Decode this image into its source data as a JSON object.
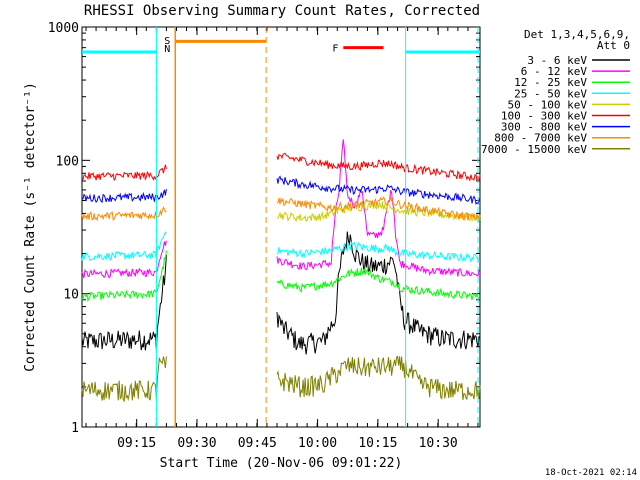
{
  "chart_data": {
    "type": "line",
    "title": "RHESSI Observing Summary Count Rates, Corrected",
    "xlabel": "Start Time (20-Nov-06 09:01:22)",
    "ylabel": "Corrected Count Rate (s⁻¹ detector⁻¹)",
    "footer_timestamp": "18-Oct-2021 02:14",
    "y_scale": "log",
    "ylim": [
      1,
      1000
    ],
    "xlim": [
      0,
      99
    ],
    "y_ticks": [
      {
        "value": 1,
        "label": "1"
      },
      {
        "value": 10,
        "label": "10"
      },
      {
        "value": 100,
        "label": "100"
      },
      {
        "value": 1000,
        "label": "1000"
      }
    ],
    "x_ticks": [
      {
        "value": 13.6,
        "label": "09:15"
      },
      {
        "value": 28.6,
        "label": "09:30"
      },
      {
        "value": 43.6,
        "label": "09:45"
      },
      {
        "value": 58.6,
        "label": "10:00"
      },
      {
        "value": 73.6,
        "label": "10:15"
      },
      {
        "value": 88.6,
        "label": "10:30"
      }
    ],
    "legend_header": [
      "Det 1,3,4,5,6,9,",
      "Att 0"
    ],
    "legend_position": "right",
    "series": [
      {
        "name": "3 - 6 keV",
        "color": "#000000",
        "values": [
          [
            0,
            4.4
          ],
          [
            18.5,
            4.6
          ],
          [
            19.5,
            8
          ],
          [
            20.5,
            13
          ],
          [
            21,
            17
          ],
          [
            48.5,
            7
          ],
          [
            50,
            5.5
          ],
          [
            54,
            4.2
          ],
          [
            60,
            4.4
          ],
          [
            63,
            6.5
          ],
          [
            65,
            21
          ],
          [
            66.5,
            28
          ],
          [
            68,
            20
          ],
          [
            70,
            17
          ],
          [
            72,
            16
          ],
          [
            74,
            16
          ],
          [
            76,
            17
          ],
          [
            77.5,
            18
          ],
          [
            79,
            9
          ],
          [
            80,
            6.5
          ],
          [
            84,
            5.2
          ],
          [
            90,
            4.6
          ],
          [
            99,
            4.6
          ]
        ]
      },
      {
        "name": "6 - 12 keV",
        "color": "#ff00ff",
        "values": [
          [
            0,
            14
          ],
          [
            18.5,
            14.5
          ],
          [
            20,
            22
          ],
          [
            21,
            25
          ],
          [
            48.5,
            18
          ],
          [
            55,
            16
          ],
          [
            62,
            17
          ],
          [
            64,
            60
          ],
          [
            65,
            135
          ],
          [
            66,
            55
          ],
          [
            68,
            45
          ],
          [
            69.5,
            60
          ],
          [
            71,
            28
          ],
          [
            73,
            27
          ],
          [
            75,
            30
          ],
          [
            77,
            60
          ],
          [
            78,
            28
          ],
          [
            79,
            17
          ],
          [
            85,
            15
          ],
          [
            99,
            14
          ]
        ]
      },
      {
        "name": "12 - 25 keV",
        "color": "#00ff00",
        "values": [
          [
            0,
            9.5
          ],
          [
            18.5,
            10
          ],
          [
            20,
            15
          ],
          [
            21,
            20
          ],
          [
            48.5,
            12
          ],
          [
            55,
            11
          ],
          [
            62,
            12
          ],
          [
            66,
            14
          ],
          [
            70,
            15
          ],
          [
            74,
            13
          ],
          [
            78,
            12
          ],
          [
            79.5,
            11
          ],
          [
            90,
            10
          ],
          [
            99,
            9.5
          ]
        ]
      },
      {
        "name": "25 - 50 keV",
        "color": "#00ffff",
        "values": [
          [
            0,
            19
          ],
          [
            18.5,
            19.5
          ],
          [
            21,
            30
          ],
          [
            48.5,
            21
          ],
          [
            55,
            20
          ],
          [
            62,
            21
          ],
          [
            67,
            23
          ],
          [
            72,
            22
          ],
          [
            76,
            22
          ],
          [
            79,
            20
          ],
          [
            90,
            19
          ],
          [
            99,
            18.5
          ]
        ]
      },
      {
        "name": "50 - 100 keV",
        "color": "#cccc00",
        "values": [
          [
            48.5,
            39
          ],
          [
            55,
            37
          ],
          [
            60,
            38
          ],
          [
            64,
            42
          ],
          [
            67,
            44
          ],
          [
            70,
            45
          ],
          [
            74,
            47
          ],
          [
            77,
            44
          ],
          [
            80,
            42
          ],
          [
            90,
            39
          ],
          [
            99,
            37
          ]
        ]
      },
      {
        "name": "100 - 300 keV",
        "color": "#ff0000",
        "values": [
          [
            0,
            76
          ],
          [
            18.5,
            77
          ],
          [
            21,
            88
          ],
          [
            48.5,
            108
          ],
          [
            55,
            100
          ],
          [
            62,
            92
          ],
          [
            67,
            90
          ],
          [
            71,
            92
          ],
          [
            74,
            96
          ],
          [
            77,
            94
          ],
          [
            80,
            88
          ],
          [
            90,
            80
          ],
          [
            99,
            74
          ]
        ]
      },
      {
        "name": "300 - 800 keV",
        "color": "#0000ff",
        "values": [
          [
            0,
            52
          ],
          [
            18.5,
            53
          ],
          [
            21,
            58
          ],
          [
            48.5,
            72
          ],
          [
            55,
            66
          ],
          [
            62,
            62
          ],
          [
            67,
            60
          ],
          [
            72,
            60
          ],
          [
            76,
            62
          ],
          [
            80,
            58
          ],
          [
            90,
            54
          ],
          [
            99,
            50
          ]
        ]
      },
      {
        "name": "800 - 7000 keV",
        "color": "#ff8800",
        "values": [
          [
            0,
            38
          ],
          [
            18.5,
            39
          ],
          [
            21,
            44
          ],
          [
            48.5,
            50
          ],
          [
            55,
            47
          ],
          [
            62,
            44
          ],
          [
            67,
            46
          ],
          [
            72,
            48
          ],
          [
            76,
            50
          ],
          [
            80,
            46
          ],
          [
            90,
            40
          ],
          [
            99,
            37
          ]
        ]
      },
      {
        "name": "7000 - 15000 keV",
        "color": "#808000",
        "values": [
          [
            0,
            1.9
          ],
          [
            18.5,
            1.9
          ],
          [
            19,
            2.9
          ],
          [
            21,
            2.9
          ],
          [
            48.5,
            2.3
          ],
          [
            55,
            2.0
          ],
          [
            60,
            2.1
          ],
          [
            66,
            2.9
          ],
          [
            70,
            2.8
          ],
          [
            80,
            2.9
          ],
          [
            84,
            2.1
          ],
          [
            90,
            1.9
          ],
          [
            99,
            1.9
          ]
        ]
      }
    ],
    "annotations": {
      "night_flag": {
        "color": "#00ffff",
        "level": 650,
        "intervals": [
          [
            0,
            18.5
          ],
          [
            80.5,
            99
          ]
        ],
        "boundaries": [
          18.5,
          80.5
        ],
        "dashed": [
          18.5,
          99
        ]
      },
      "saa_flag": {
        "label_s": "S",
        "label_n": "N",
        "color": "#ff8800",
        "s_color": "#ff8800",
        "n_color": "#00ffff",
        "level": 780,
        "interval": [
          23.2,
          45.8
        ],
        "solid_x": 23.2,
        "dashed_x": 45.8
      },
      "flare_flag": {
        "label": "F",
        "color": "#ff0000",
        "level": 700,
        "interval": [
          65,
          75
        ]
      }
    }
  }
}
